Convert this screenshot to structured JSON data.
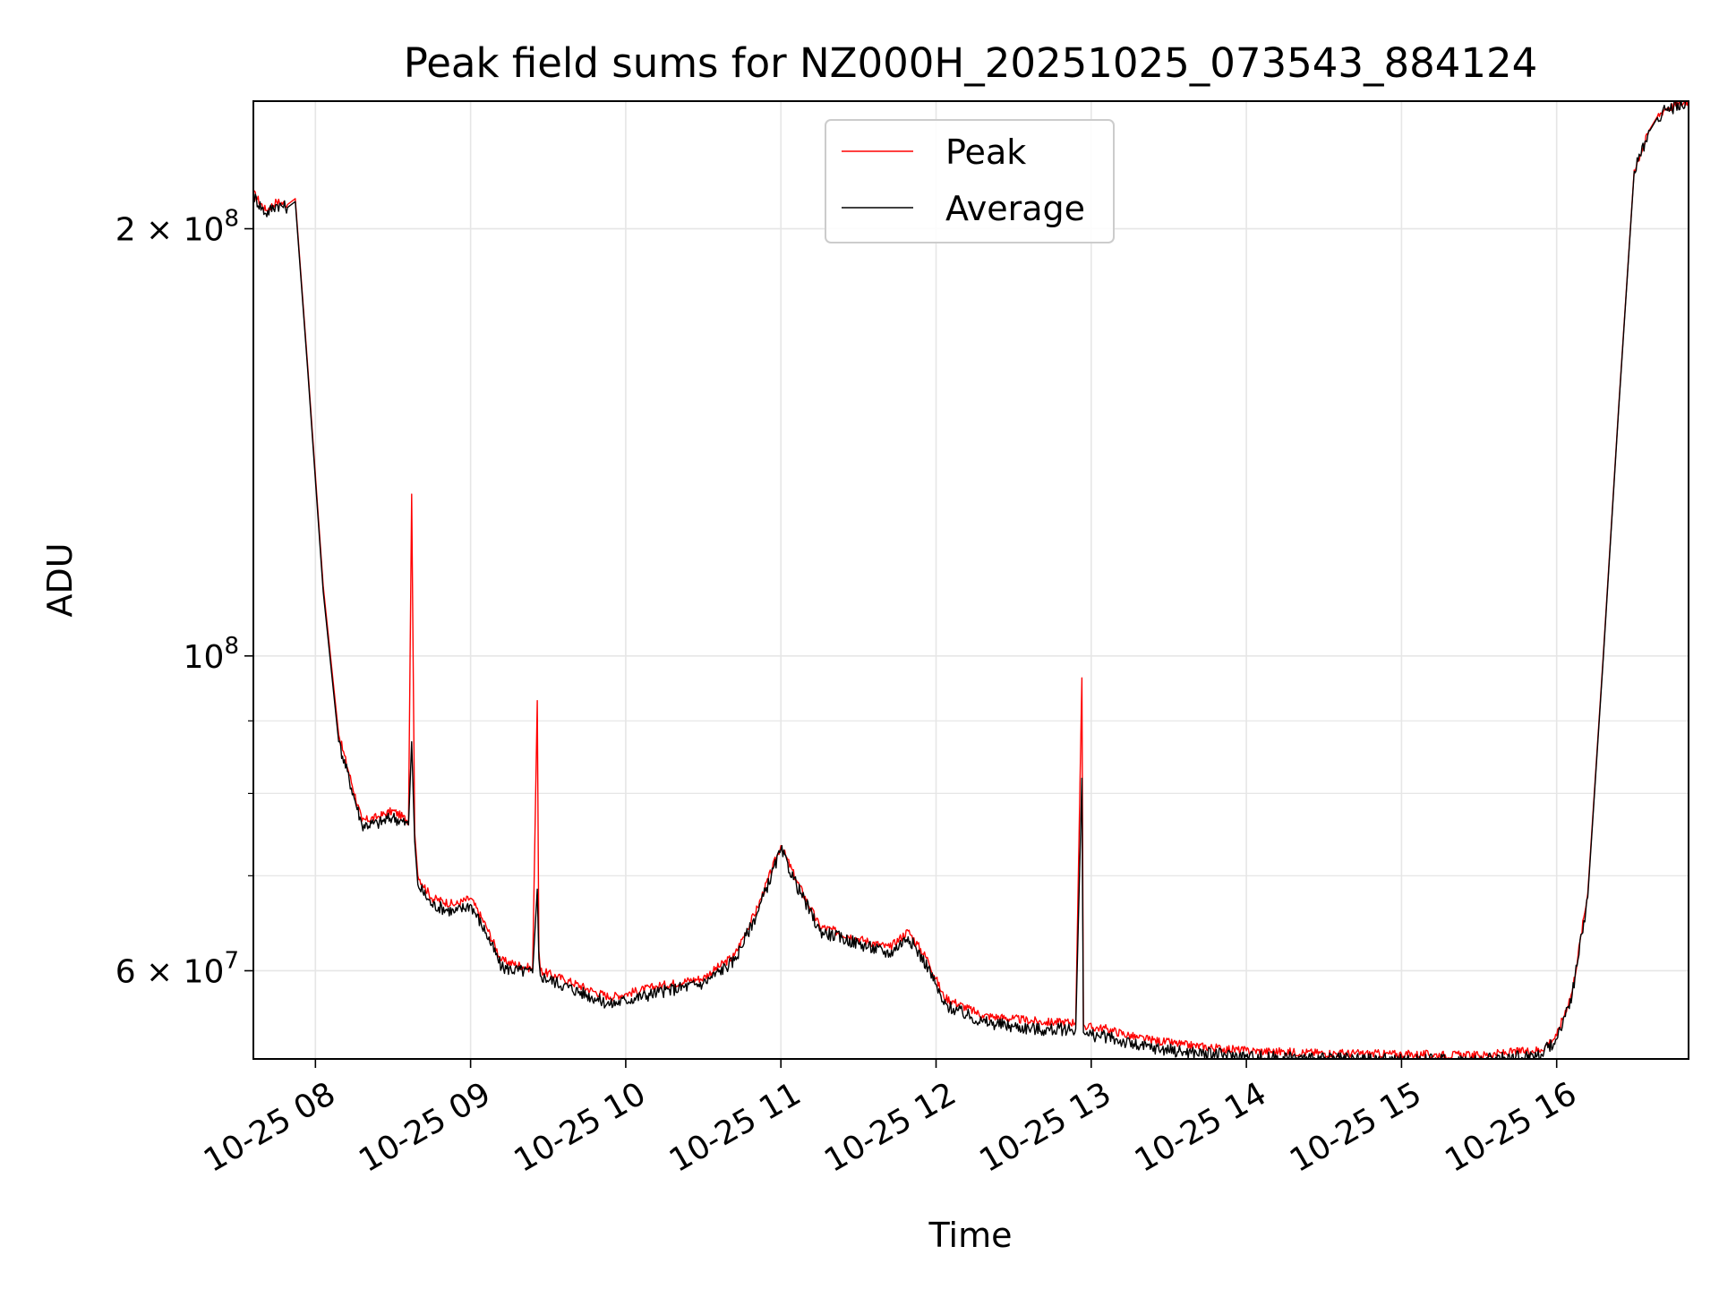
{
  "chart_data": {
    "type": "line",
    "title": "Peak field sums for NZ000H_20251025_073543_884124",
    "xlabel": "Time",
    "ylabel": "ADU",
    "yscale": "log",
    "xlim": [
      7.6,
      16.85
    ],
    "ylim": [
      52000000,
      246000000
    ],
    "grid": true,
    "legend_position": "top-center",
    "x_ticks": [
      {
        "value": 8,
        "label": "10-25 08"
      },
      {
        "value": 9,
        "label": "10-25 09"
      },
      {
        "value": 10,
        "label": "10-25 10"
      },
      {
        "value": 11,
        "label": "10-25 11"
      },
      {
        "value": 12,
        "label": "10-25 12"
      },
      {
        "value": 13,
        "label": "10-25 13"
      },
      {
        "value": 14,
        "label": "10-25 14"
      },
      {
        "value": 15,
        "label": "10-25 15"
      },
      {
        "value": 16,
        "label": "10-25 16"
      }
    ],
    "y_ticks": [
      {
        "value": 200000000,
        "base": "2 × 10",
        "exp": "8"
      },
      {
        "value": 100000000,
        "base": "10",
        "exp": "8"
      },
      {
        "value": 60000000,
        "base": "6 × 10",
        "exp": "7"
      }
    ],
    "y_minor_ticks": [
      70000000,
      80000000,
      90000000
    ],
    "series": [
      {
        "name": "Peak",
        "color": "#ff0000",
        "x": [
          7.6,
          7.68,
          7.75,
          7.82,
          7.87,
          7.95,
          8.05,
          8.15,
          8.3,
          8.4,
          8.5,
          8.6,
          8.62,
          8.64,
          8.66,
          8.75,
          8.9,
          9.0,
          9.1,
          9.2,
          9.4,
          9.43,
          9.44,
          9.45,
          9.6,
          9.8,
          9.9,
          10.0,
          10.2,
          10.5,
          10.7,
          10.85,
          11.0,
          11.1,
          11.25,
          11.5,
          11.7,
          11.82,
          11.95,
          12.05,
          12.3,
          12.5,
          12.7,
          12.9,
          12.94,
          12.95,
          12.96,
          13.1,
          13.3,
          13.6,
          14.0,
          14.5,
          15.0,
          15.5,
          15.9,
          16.0,
          16.1,
          16.2,
          16.3,
          16.4,
          16.5,
          16.6,
          16.65,
          16.7,
          16.85
        ],
        "y": [
          212000000,
          206000000,
          209000000,
          208000000,
          210000000,
          160000000,
          112000000,
          88000000,
          76500000,
          77000000,
          77800000,
          76500000,
          130000000,
          75000000,
          70000000,
          67500000,
          66800000,
          67500000,
          64500000,
          61000000,
          60200000,
          93000000,
          62000000,
          60000000,
          59200000,
          58000000,
          57500000,
          57800000,
          58500000,
          59300000,
          61500000,
          66500000,
          73500000,
          69500000,
          64500000,
          63200000,
          62300000,
          64000000,
          61000000,
          57500000,
          55800000,
          55500000,
          55200000,
          55200000,
          96500000,
          55000000,
          54800000,
          54600000,
          53800000,
          53200000,
          52700000,
          52500000,
          52400000,
          52300000,
          52800000,
          54000000,
          58000000,
          68000000,
          100000000,
          150000000,
          220000000,
          235000000,
          240000000,
          243000000,
          246000000
        ]
      },
      {
        "name": "Average",
        "color": "#000000",
        "x": [
          7.6,
          7.68,
          7.75,
          7.82,
          7.87,
          7.95,
          8.05,
          8.15,
          8.3,
          8.4,
          8.5,
          8.6,
          8.62,
          8.64,
          8.66,
          8.75,
          8.9,
          9.0,
          9.1,
          9.2,
          9.4,
          9.43,
          9.44,
          9.45,
          9.6,
          9.8,
          9.9,
          10.0,
          10.2,
          10.5,
          10.7,
          10.85,
          11.0,
          11.1,
          11.25,
          11.5,
          11.7,
          11.82,
          11.95,
          12.05,
          12.3,
          12.5,
          12.7,
          12.9,
          12.94,
          12.95,
          12.96,
          13.1,
          13.3,
          13.6,
          14.0,
          14.5,
          15.0,
          15.5,
          15.9,
          16.0,
          16.1,
          16.2,
          16.3,
          16.4,
          16.5,
          16.6,
          16.65,
          16.7,
          16.85
        ],
        "y": [
          211000000,
          205000000,
          208000000,
          207000000,
          209000000,
          159000000,
          111000000,
          87000000,
          76000000,
          76200000,
          77000000,
          76000000,
          87000000,
          74000000,
          69000000,
          66800000,
          66000000,
          66800000,
          63800000,
          60300000,
          59800000,
          68500000,
          61200000,
          59500000,
          58600000,
          57400000,
          56800000,
          57200000,
          57900000,
          58800000,
          61000000,
          66000000,
          73000000,
          69000000,
          64000000,
          62700000,
          61700000,
          63400000,
          60300000,
          56800000,
          55200000,
          54800000,
          54500000,
          54600000,
          82000000,
          54300000,
          54100000,
          53900000,
          53100000,
          52600000,
          52200000,
          52000000,
          51900000,
          51900000,
          52400000,
          53700000,
          57700000,
          67600000,
          99500000,
          149500000,
          219500000,
          234500000,
          239500000,
          242500000,
          245500000
        ]
      }
    ]
  }
}
